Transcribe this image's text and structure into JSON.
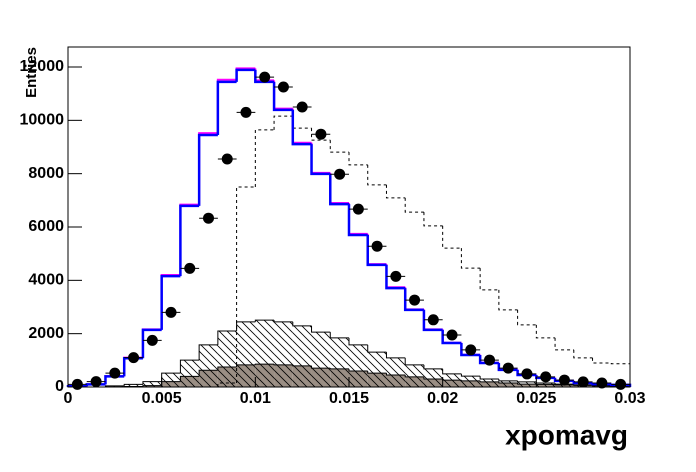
{
  "chart_data": {
    "type": "histogram",
    "x_label": "xpomavg",
    "y_label": "Entries",
    "bins": [
      0,
      0.001,
      0.002,
      0.003,
      0.004,
      0.005,
      0.006,
      0.007,
      0.008,
      0.009,
      0.01,
      0.011,
      0.012,
      0.013,
      0.014,
      0.015,
      0.016,
      0.017,
      0.018,
      0.019,
      0.02,
      0.021,
      0.022,
      0.023,
      0.024,
      0.025,
      0.026,
      0.027,
      0.028,
      0.029,
      0.03
    ],
    "xlim": [
      0,
      0.03
    ],
    "ylim": [
      0,
      12750
    ],
    "xticks": [
      0,
      0.005,
      0.01,
      0.015,
      0.02,
      0.025,
      0.03
    ],
    "yticks": [
      0,
      2000,
      4000,
      6000,
      8000,
      10000,
      12000
    ],
    "series": [
      {
        "style": "filled",
        "color": "#9a8e84",
        "values": [
          0,
          0,
          10,
          20,
          50,
          200,
          400,
          630,
          750,
          830,
          860,
          830,
          790,
          710,
          680,
          600,
          520,
          450,
          380,
          300,
          260,
          230,
          190,
          150,
          110,
          100,
          80,
          60,
          40,
          30
        ]
      },
      {
        "style": "hatched",
        "color": "#000000",
        "values": [
          0,
          0,
          40,
          100,
          200,
          520,
          1010,
          1580,
          2100,
          2440,
          2510,
          2440,
          2290,
          2060,
          1840,
          1580,
          1310,
          1090,
          830,
          680,
          490,
          410,
          300,
          230,
          190,
          150,
          110,
          80,
          60,
          40
        ]
      },
      {
        "style": "dashed",
        "color": "#000000",
        "values": [
          0,
          0,
          0,
          0,
          0,
          0,
          0,
          0,
          150,
          7500,
          9640,
          10160,
          9710,
          9260,
          8810,
          8330,
          7580,
          7090,
          6560,
          6040,
          5210,
          4460,
          3640,
          2890,
          2330,
          1840,
          1390,
          1090,
          900,
          870
        ]
      },
      {
        "style": "solid",
        "color": "#ff00ff",
        "values": [
          30,
          100,
          410,
          1100,
          2160,
          4200,
          6840,
          9520,
          11520,
          11950,
          11500,
          10440,
          9160,
          8030,
          6900,
          5740,
          4610,
          3740,
          2910,
          2160,
          1660,
          1210,
          910,
          650,
          455,
          345,
          235,
          155,
          112,
          82
        ]
      },
      {
        "style": "solid",
        "color": "#0000ff",
        "values": [
          30,
          100,
          400,
          1080,
          2140,
          4160,
          6790,
          9450,
          11440,
          11890,
          11440,
          10390,
          9110,
          7990,
          6860,
          5700,
          4580,
          3710,
          2890,
          2140,
          1650,
          1200,
          900,
          640,
          450,
          340,
          230,
          150,
          110,
          80
        ]
      },
      {
        "style": "points",
        "color": "#000000",
        "values": [
          100,
          200,
          520,
          1100,
          1750,
          2800,
          4450,
          6330,
          8550,
          10300,
          11620,
          11250,
          10500,
          9480,
          7980,
          6670,
          5280,
          4150,
          3260,
          2520,
          1950,
          1390,
          1010,
          710,
          490,
          380,
          260,
          190,
          150,
          100
        ]
      }
    ]
  }
}
